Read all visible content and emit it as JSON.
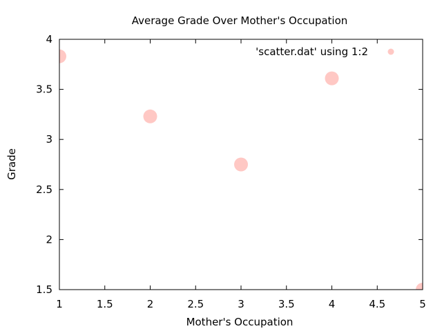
{
  "chart_data": {
    "type": "scatter",
    "title": "Average Grade Over Mother's Occupation",
    "xlabel": "Mother's Occupation",
    "ylabel": "Grade",
    "xlim": [
      1,
      5
    ],
    "ylim": [
      1.5,
      4
    ],
    "x_ticks": [
      "1",
      "1.5",
      "2",
      "2.5",
      "3",
      "3.5",
      "4",
      "4.5",
      "5"
    ],
    "y_ticks": [
      "1.5",
      "2",
      "2.5",
      "3",
      "3.5",
      "4"
    ],
    "grid": false,
    "legend_position": "top-right",
    "series": [
      {
        "name": "'scatter.dat' using 1:2",
        "color": "#ffc8c4",
        "points": [
          {
            "x": 1,
            "y": 3.83
          },
          {
            "x": 2,
            "y": 3.23
          },
          {
            "x": 3,
            "y": 2.75
          },
          {
            "x": 4,
            "y": 3.61
          },
          {
            "x": 5,
            "y": 1.5
          }
        ]
      }
    ]
  }
}
